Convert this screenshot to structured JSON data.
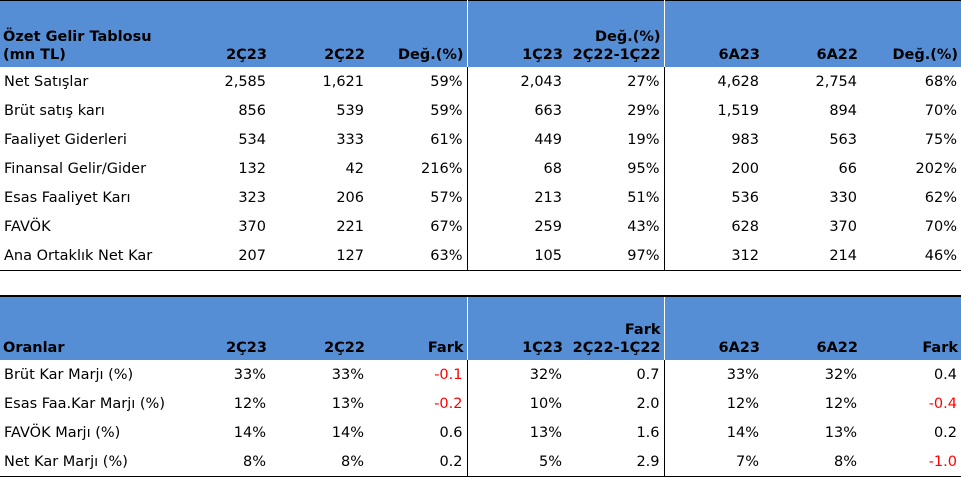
{
  "table1": {
    "header": {
      "col0": [
        "Özet Gelir Tablosu",
        "(mn TL)"
      ],
      "cols": [
        [
          "2Ç23"
        ],
        [
          "2Ç22"
        ],
        [
          "Değ.(%)"
        ],
        [
          "1Ç23"
        ],
        [
          "Değ.(%)",
          "2Ç22-1Ç22"
        ],
        [
          "6A23"
        ],
        [
          "6A22"
        ],
        [
          "Değ.(%)"
        ]
      ]
    },
    "rows": [
      {
        "label": "Net Satışlar",
        "values": [
          "2,585",
          "1,621",
          "59%",
          "2,043",
          "27%",
          "4,628",
          "2,754",
          "68%"
        ]
      },
      {
        "label": "Brüt satış karı",
        "values": [
          "856",
          "539",
          "59%",
          "663",
          "29%",
          "1,519",
          "894",
          "70%"
        ]
      },
      {
        "label": "Faaliyet Giderleri",
        "values": [
          "534",
          "333",
          "61%",
          "449",
          "19%",
          "983",
          "563",
          "75%"
        ]
      },
      {
        "label": "Finansal Gelir/Gider",
        "values": [
          "132",
          "42",
          "216%",
          "68",
          "95%",
          "200",
          "66",
          "202%"
        ]
      },
      {
        "label": "Esas Faaliyet Karı",
        "values": [
          "323",
          "206",
          "57%",
          "213",
          "51%",
          "536",
          "330",
          "62%"
        ]
      },
      {
        "label": "FAVÖK",
        "values": [
          "370",
          "221",
          "67%",
          "259",
          "43%",
          "628",
          "370",
          "70%"
        ]
      },
      {
        "label": "Ana Ortaklık Net Kar",
        "values": [
          "207",
          "127",
          "63%",
          "105",
          "97%",
          "312",
          "214",
          "46%"
        ]
      }
    ]
  },
  "table2": {
    "header": {
      "col0": [
        "Oranlar"
      ],
      "cols": [
        [
          "2Ç23"
        ],
        [
          "2Ç22"
        ],
        [
          "Fark"
        ],
        [
          "1Ç23"
        ],
        [
          "Fark",
          "2Ç22-1Ç22"
        ],
        [
          "6A23"
        ],
        [
          "6A22"
        ],
        [
          "Fark"
        ]
      ]
    },
    "rows": [
      {
        "label": "Brüt Kar Marjı (%)",
        "values": [
          "33%",
          "33%",
          "-0.1",
          "32%",
          "0.7",
          "33%",
          "32%",
          "0.4"
        ]
      },
      {
        "label": "Esas Faa.Kar Marjı (%)",
        "values": [
          "12%",
          "13%",
          "-0.2",
          "10%",
          "2.0",
          "12%",
          "12%",
          "-0.4"
        ]
      },
      {
        "label": "FAVÖK Marjı (%)",
        "values": [
          "14%",
          "14%",
          "0.6",
          "13%",
          "1.6",
          "14%",
          "13%",
          "0.2"
        ]
      },
      {
        "label": "Net Kar Marjı (%)",
        "values": [
          "8%",
          "8%",
          "0.2",
          "5%",
          "2.9",
          "7%",
          "8%",
          "-1.0"
        ]
      }
    ]
  },
  "colors": {
    "header_bg": "#558ED5",
    "negative": "#FF0000",
    "text": "#000000"
  }
}
